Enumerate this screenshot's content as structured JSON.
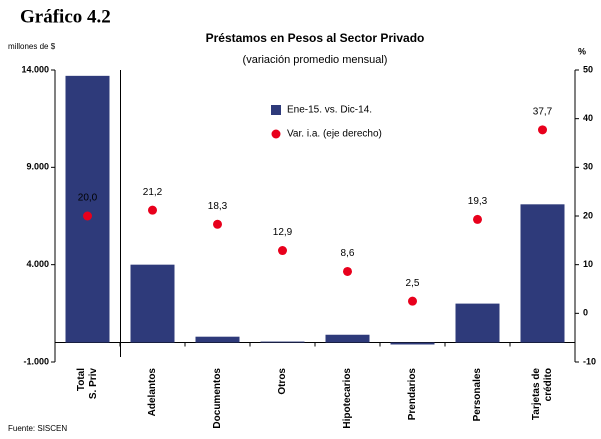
{
  "chart_data": {
    "type": "bar",
    "heading": "Gráfico 4.2",
    "title": "Préstamos en Pesos al Sector Privado",
    "subtitle": "(variación promedio mensual)",
    "ylabel": "millones de $",
    "y2label": "%",
    "source": "Fuente: SISCEN",
    "categories": [
      [
        "Total",
        "S. Priv"
      ],
      [
        "Adelantos"
      ],
      [
        "Documentos"
      ],
      [
        "Otros"
      ],
      [
        "Hipotecarios"
      ],
      [
        "Prendarios"
      ],
      [
        "Personales"
      ],
      [
        "Tarjetas de",
        "crédito"
      ]
    ],
    "series": [
      {
        "name": "Ene-15. vs. Dic-14.",
        "color": "#2e3a7a",
        "type": "bar",
        "values": [
          13700,
          4000,
          300,
          50,
          400,
          -100,
          2000,
          7100
        ]
      },
      {
        "name": "Var. i.a. (eje derecho)",
        "color": "#e8001c",
        "type": "scatter",
        "axis": "y2",
        "values": [
          20.0,
          21.2,
          18.3,
          12.9,
          8.6,
          2.5,
          19.3,
          37.7
        ],
        "value_labels": [
          "20,0",
          "21,2",
          "18,3",
          "12,9",
          "8,6",
          "2,5",
          "19,3",
          "37,7"
        ]
      }
    ],
    "ylim": [
      -1000,
      14000
    ],
    "yticks": [
      {
        "value": -1000,
        "label": "-1.000"
      },
      {
        "value": 4000,
        "label": "4.000"
      },
      {
        "value": 9000,
        "label": "9.000"
      },
      {
        "value": 14000,
        "label": "14.000"
      }
    ],
    "y2lim": [
      -10,
      50
    ],
    "y2ticks": [
      {
        "value": -10,
        "label": "-10"
      },
      0,
      10,
      20,
      30,
      40,
      50
    ]
  }
}
